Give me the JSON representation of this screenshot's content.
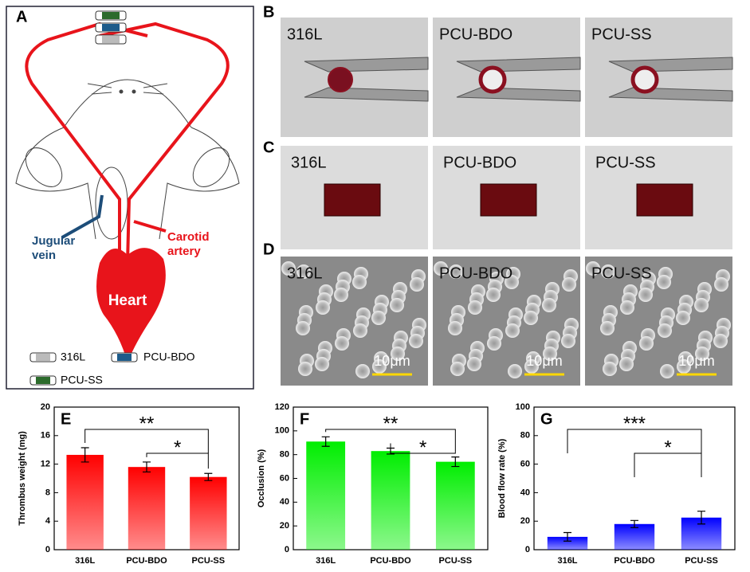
{
  "panel_a": {
    "label": "A",
    "heart": "Heart",
    "vein": [
      "Jugular",
      "vein"
    ],
    "artery": [
      "Carotid",
      "artery"
    ],
    "legend": [
      "316L",
      "PCU-BDO",
      "PCU-SS"
    ]
  },
  "panel_b": {
    "label": "B",
    "photos": [
      "316L",
      "PCU-BDO",
      "PCU-SS"
    ]
  },
  "panel_c": {
    "label": "C",
    "photos": [
      "316L",
      "PCU-BDO",
      "PCU-SS"
    ]
  },
  "panel_d": {
    "label": "D",
    "photos": [
      "316L",
      "PCU-BDO",
      "PCU-SS"
    ],
    "scale_bar": "10μm"
  },
  "chart_data": [
    {
      "type": "bar",
      "label": "E",
      "ylabel": "Thrombus weight (mg)",
      "categories": [
        "316L",
        "PCU-BDO",
        "PCU-SS"
      ],
      "values": [
        13.3,
        11.6,
        10.2
      ],
      "errors": [
        1.0,
        0.7,
        0.5
      ],
      "color": "#ff0000",
      "ylim": [
        0,
        20
      ],
      "yticks": [
        0,
        4,
        8,
        12,
        16,
        20
      ],
      "annotations": [
        {
          "text": "**",
          "between": [
            "316L",
            "PCU-SS"
          ]
        },
        {
          "text": "*",
          "between": [
            "PCU-BDO",
            "PCU-SS"
          ]
        }
      ]
    },
    {
      "type": "bar",
      "label": "F",
      "ylabel": "Occlusion (%)",
      "categories": [
        "316L",
        "PCU-BDO",
        "PCU-SS"
      ],
      "values": [
        91,
        83,
        74
      ],
      "errors": [
        4,
        2.5,
        4
      ],
      "color": "#00ee00",
      "ylim": [
        0,
        120
      ],
      "yticks": [
        0,
        20,
        40,
        60,
        80,
        100,
        120
      ],
      "annotations": [
        {
          "text": "**",
          "between": [
            "316L",
            "PCU-SS"
          ]
        },
        {
          "text": "*",
          "between": [
            "PCU-BDO",
            "PCU-SS"
          ]
        }
      ]
    },
    {
      "type": "bar",
      "label": "G",
      "ylabel": "Blood flow rate (%)",
      "categories": [
        "316L",
        "PCU-BDO",
        "PCU-SS"
      ],
      "values": [
        9,
        18,
        22.5
      ],
      "errors": [
        3,
        2.5,
        4.5
      ],
      "color": "#0000ff",
      "ylim": [
        0,
        100
      ],
      "yticks": [
        0,
        20,
        40,
        60,
        80,
        100
      ],
      "annotations": [
        {
          "text": "***",
          "between": [
            "316L",
            "PCU-SS"
          ]
        },
        {
          "text": "*",
          "between": [
            "PCU-BDO",
            "PCU-SS"
          ]
        }
      ]
    }
  ]
}
